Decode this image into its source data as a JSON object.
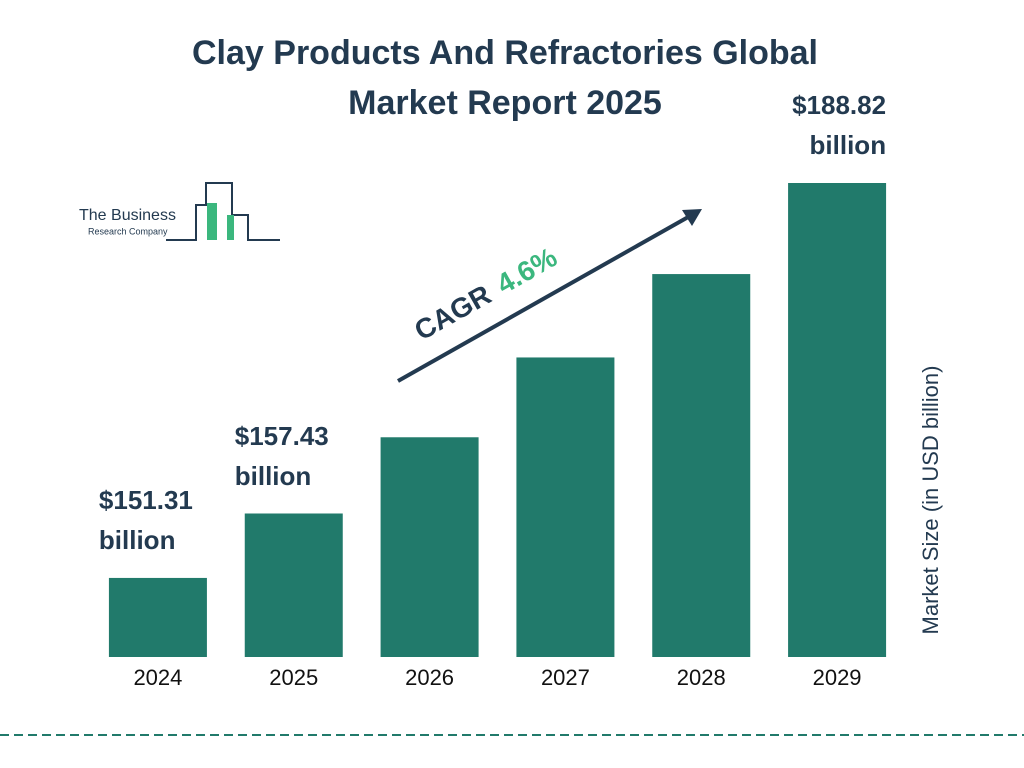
{
  "chart_data": {
    "type": "bar",
    "title": "Clay Products And Refractories Global Market Report 2025",
    "logo": {
      "line1": "The Business",
      "line2": "Research Company"
    },
    "y_label": "Market Size (in USD billion)",
    "annotation": {
      "prefix": "CAGR",
      "value": "4.6%"
    },
    "categories": [
      "2024",
      "2025",
      "2026",
      "2027",
      "2028",
      "2029"
    ],
    "values": [
      151.31,
      157.43,
      164.67,
      172.25,
      180.17,
      188.82
    ],
    "value_labels": [
      "$151.31 billion",
      "$157.43 billion",
      null,
      null,
      null,
      "$188.82 billion"
    ],
    "color": "#217a6b",
    "ylim": [
      143.8,
      188.82
    ]
  }
}
